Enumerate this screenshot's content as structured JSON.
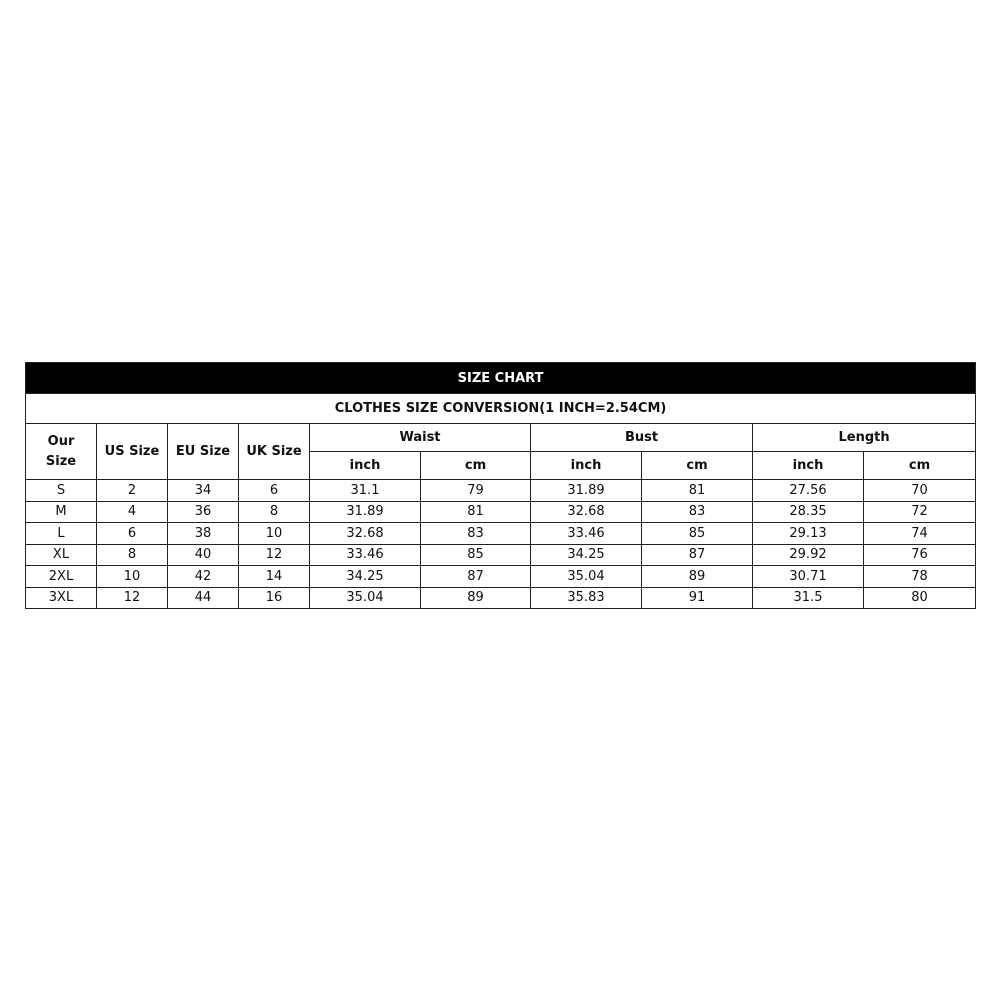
{
  "title": "SIZE CHART",
  "subtitle": "CLOTHES SIZE CONVERSION(1 INCH=2.54CM)",
  "headers": {
    "our_size": "Our Size",
    "us_size": "US Size",
    "eu_size": "EU Size",
    "uk_size": "UK Size",
    "waist": "Waist",
    "bust": "Bust",
    "length": "Length",
    "inch": "inch",
    "cm": "cm"
  },
  "rows": [
    [
      "S",
      "2",
      "34",
      "6",
      "31.1",
      "79",
      "31.89",
      "81",
      "27.56",
      "70"
    ],
    [
      "M",
      "4",
      "36",
      "8",
      "31.89",
      "81",
      "32.68",
      "83",
      "28.35",
      "72"
    ],
    [
      "L",
      "6",
      "38",
      "10",
      "32.68",
      "83",
      "33.46",
      "85",
      "29.13",
      "74"
    ],
    [
      "XL",
      "8",
      "40",
      "12",
      "33.46",
      "85",
      "34.25",
      "87",
      "29.92",
      "76"
    ],
    [
      "2XL",
      "10",
      "42",
      "14",
      "34.25",
      "87",
      "35.04",
      "89",
      "30.71",
      "78"
    ],
    [
      "3XL",
      "12",
      "44",
      "16",
      "35.04",
      "89",
      "35.83",
      "91",
      "31.5",
      "80"
    ]
  ],
  "colors": {
    "title_bg": "#000000",
    "title_text": "#ffffff",
    "border": "#222222"
  }
}
